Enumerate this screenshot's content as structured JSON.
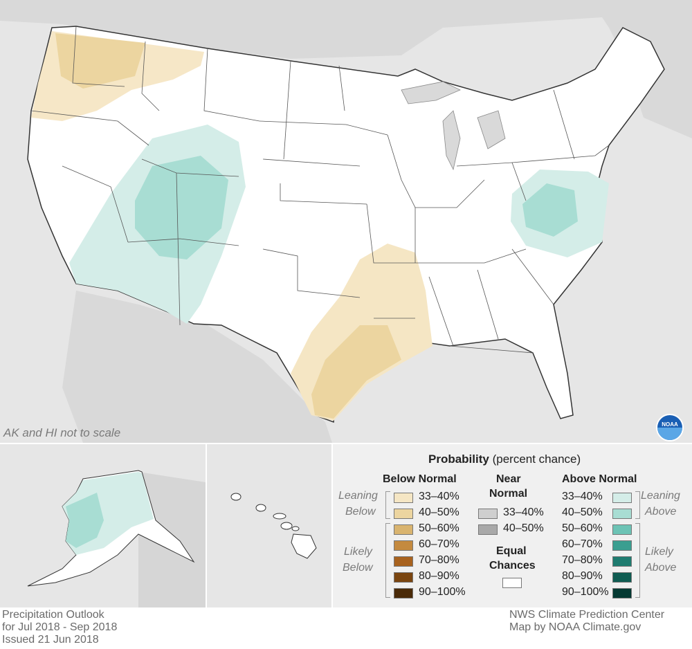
{
  "map": {
    "scale_note": "AK and HI not to scale",
    "logo_text": "NOAA"
  },
  "legend": {
    "title_bold": "Probability",
    "title_rest": "(percent chance)",
    "below_header": "Below Normal",
    "near_header_line1": "Near",
    "near_header_line2": "Normal",
    "above_header": "Above Normal",
    "leaning_word": "Leaning",
    "below_word": "Below",
    "above_word": "Above",
    "likely_word": "Likely",
    "equal_line1": "Equal",
    "equal_line2": "Chances",
    "below_rows": [
      {
        "label": "33–40%",
        "color": "#f5e6c4"
      },
      {
        "label": "40–50%",
        "color": "#ecd5a0"
      },
      {
        "label": "50–60%",
        "color": "#d9b46f"
      },
      {
        "label": "60–70%",
        "color": "#c48a3f"
      },
      {
        "label": "70–80%",
        "color": "#a8621e"
      },
      {
        "label": "80–90%",
        "color": "#7a4510"
      },
      {
        "label": "90–100%",
        "color": "#4a2a08"
      }
    ],
    "near_rows": [
      {
        "label": "33–40%",
        "color": "#cfcfcf"
      },
      {
        "label": "40–50%",
        "color": "#a9a9a9"
      }
    ],
    "equal_color": "#ffffff",
    "above_rows": [
      {
        "label": "33–40%",
        "color": "#d4ede8"
      },
      {
        "label": "40–50%",
        "color": "#a8ddd3"
      },
      {
        "label": "50–60%",
        "color": "#6cc3b5"
      },
      {
        "label": "60–70%",
        "color": "#3a9e90"
      },
      {
        "label": "70–80%",
        "color": "#1f7c70"
      },
      {
        "label": "80–90%",
        "color": "#0f5c52"
      },
      {
        "label": "90–100%",
        "color": "#053a33"
      }
    ]
  },
  "footer": {
    "left_line1": "Precipitation Outlook",
    "left_line2": "for Jul 2018 - Sep 2018",
    "left_line3": "Issued 21 Jun 2018",
    "right_line1": "NWS Climate Prediction Center",
    "right_line2": "Map by NOAA Climate.gov"
  }
}
